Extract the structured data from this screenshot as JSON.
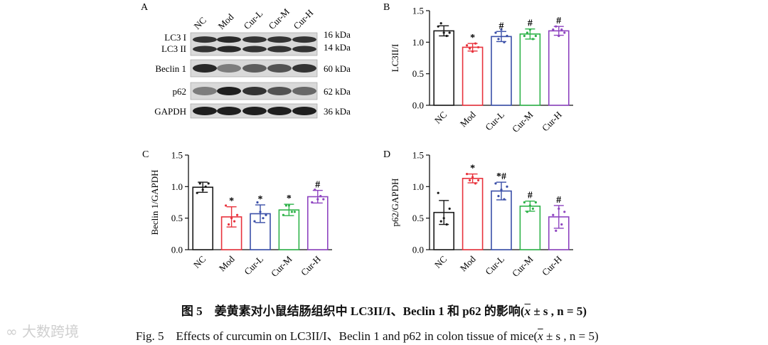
{
  "figure": {
    "panel_labels": [
      "A",
      "B",
      "C",
      "D"
    ],
    "caption_cn": {
      "prefix": "图 5",
      "title": "姜黄素对小鼠结肠组织中 LC3II/I、Beclin 1 和 p62 的影响(",
      "x": "x",
      "rest": " ± s , n = 5)"
    },
    "caption_en": {
      "prefix": "Fig. 5",
      "title": "Effects of curcumin on LC3II/I、Beclin 1 and p62 in colon tissue of mice(",
      "x": "x",
      "rest": " ± s , n = 5)"
    },
    "watermark": "大数跨境"
  },
  "colors": {
    "NC": "#1a1a1a",
    "Mod": "#e8323c",
    "Cur-L": "#3a4fa8",
    "Cur-M": "#2fb34a",
    "Cur-H": "#8e44c0"
  },
  "western_blot": {
    "lanes": [
      "NC",
      "Mod",
      "Cur-L",
      "Cur-M",
      "Cur-H"
    ],
    "rows": [
      {
        "label_lines": [
          "LC3 I",
          "LC3 II"
        ],
        "sizes": [
          "16 kDa",
          "14 kDa"
        ],
        "intensity": [
          0.85,
          0.9,
          0.85,
          0.85,
          0.85
        ]
      },
      {
        "label_lines": [
          "Beclin 1"
        ],
        "sizes": [
          "60 kDa"
        ],
        "intensity": [
          0.9,
          0.5,
          0.65,
          0.7,
          0.85
        ]
      },
      {
        "label_lines": [
          "p62"
        ],
        "sizes": [
          "62 kDa"
        ],
        "intensity": [
          0.5,
          0.95,
          0.85,
          0.7,
          0.6
        ]
      },
      {
        "label_lines": [
          "GAPDH"
        ],
        "sizes": [
          "36 kDa"
        ],
        "intensity": [
          0.95,
          0.95,
          0.95,
          0.95,
          0.95
        ]
      }
    ]
  },
  "chart_data": [
    {
      "panel": "B",
      "type": "bar",
      "categories": [
        "NC",
        "Mod",
        "Cur-L",
        "Cur-M",
        "Cur-H"
      ],
      "values": [
        1.18,
        0.92,
        1.09,
        1.13,
        1.18
      ],
      "errors": [
        0.08,
        0.06,
        0.08,
        0.08,
        0.07
      ],
      "points": [
        [
          1.25,
          1.3,
          1.15,
          1.1,
          1.15
        ],
        [
          0.95,
          0.9,
          0.85,
          0.98,
          0.92
        ],
        [
          1.15,
          1.05,
          1.2,
          1.0,
          1.1
        ],
        [
          1.1,
          1.15,
          1.2,
          1.05,
          1.1
        ],
        [
          1.2,
          1.25,
          1.1,
          1.2,
          1.15
        ]
      ],
      "annotations": [
        "",
        "*",
        "#",
        "#",
        "#"
      ],
      "ylabel": "LC3II/I",
      "xlabel": "",
      "ylim": [
        0,
        1.5
      ],
      "yticks": [
        "0.0",
        "0.5",
        "1.0",
        "1.5"
      ]
    },
    {
      "panel": "C",
      "type": "bar",
      "categories": [
        "NC",
        "Mod",
        "Cur-L",
        "Cur-M",
        "Cur-H"
      ],
      "values": [
        0.99,
        0.52,
        0.57,
        0.63,
        0.84
      ],
      "errors": [
        0.08,
        0.16,
        0.14,
        0.09,
        0.1
      ],
      "points": [
        [
          0.9,
          1.05,
          0.95,
          1.0,
          1.05
        ],
        [
          0.7,
          0.4,
          0.5,
          0.45,
          0.55
        ],
        [
          0.45,
          0.75,
          0.6,
          0.5,
          0.55
        ],
        [
          0.55,
          0.7,
          0.7,
          0.6,
          0.6
        ],
        [
          0.75,
          0.95,
          0.8,
          0.85,
          0.8
        ]
      ],
      "annotations": [
        "",
        "*",
        "*",
        "*",
        "#"
      ],
      "ylabel": "Beclin 1/GAPDH",
      "xlabel": "",
      "ylim": [
        0,
        1.5
      ],
      "yticks": [
        "0.0",
        "0.5",
        "1.0",
        "1.5"
      ]
    },
    {
      "panel": "D",
      "type": "bar",
      "categories": [
        "NC",
        "Mod",
        "Cur-L",
        "Cur-M",
        "Cur-H"
      ],
      "values": [
        0.59,
        1.13,
        0.93,
        0.69,
        0.52
      ],
      "errors": [
        0.19,
        0.07,
        0.14,
        0.08,
        0.18
      ],
      "points": [
        [
          0.9,
          0.45,
          0.5,
          0.4,
          0.65
        ],
        [
          1.2,
          1.1,
          1.15,
          1.05,
          1.1
        ],
        [
          1.05,
          0.85,
          0.95,
          0.8,
          1.0
        ],
        [
          0.75,
          0.6,
          0.7,
          0.65,
          0.75
        ],
        [
          0.55,
          0.3,
          0.65,
          0.4,
          0.6
        ]
      ],
      "annotations": [
        "",
        "*",
        "*#",
        "#",
        "#"
      ],
      "ylabel": "p62/GAPDH",
      "xlabel": "",
      "ylim": [
        0,
        1.5
      ],
      "yticks": [
        "0.0",
        "0.5",
        "1.0",
        "1.5"
      ]
    }
  ]
}
